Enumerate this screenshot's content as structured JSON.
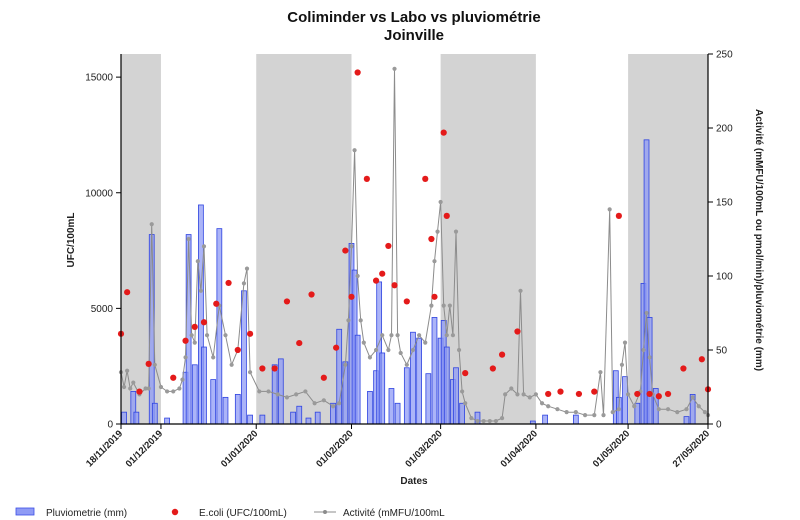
{
  "chart_data": {
    "type": "bar",
    "title": "Coliminder vs Labo vs pluviométrie",
    "subtitle": "Joinville",
    "xlabel": "Dates",
    "ylabel_left": "UFC/100mL",
    "ylabel_right": "Activité (mMFU/100mL ou pmol/min)/pluviométrie (mm)",
    "x_range": [
      "2019-11-18",
      "2020-05-27"
    ],
    "x_ticks": [
      "18/11/2019",
      "01/12/2019",
      "01/01/2020",
      "01/02/2020",
      "01/03/2020",
      "01/04/2020",
      "01/05/2020",
      "27/05/2020"
    ],
    "y_left_ticks": [
      0,
      5000,
      10000,
      15000
    ],
    "y_left_range": [
      0,
      16000
    ],
    "y_right_ticks": [
      0,
      50,
      100,
      150,
      200,
      250
    ],
    "y_right_range": [
      0,
      250
    ],
    "grid": false,
    "legend_position": "bottom",
    "shaded_periods": [
      [
        "2019-11-18",
        "2019-12-01"
      ],
      [
        "2020-01-01",
        "2020-02-01"
      ],
      [
        "2020-03-01",
        "2020-04-01"
      ],
      [
        "2020-05-01",
        "2020-05-27"
      ]
    ],
    "series": [
      {
        "name": "Pluviometrie (mm)",
        "kind": "bar",
        "axis": "right",
        "color": "#3b4fe6",
        "points": [
          [
            "2019-11-19",
            8
          ],
          [
            "2019-11-22",
            22
          ],
          [
            "2019-11-23",
            8
          ],
          [
            "2019-11-28",
            128
          ],
          [
            "2019-11-29",
            14
          ],
          [
            "2019-12-03",
            4
          ],
          [
            "2019-12-09",
            35
          ],
          [
            "2019-12-10",
            128
          ],
          [
            "2019-12-12",
            40
          ],
          [
            "2019-12-14",
            148
          ],
          [
            "2019-12-15",
            52
          ],
          [
            "2019-12-18",
            30
          ],
          [
            "2019-12-20",
            132
          ],
          [
            "2019-12-22",
            18
          ],
          [
            "2019-12-26",
            20
          ],
          [
            "2019-12-28",
            90
          ],
          [
            "2019-12-30",
            6
          ],
          [
            "2020-01-03",
            6
          ],
          [
            "2020-01-07",
            40
          ],
          [
            "2020-01-09",
            44
          ],
          [
            "2020-01-13",
            8
          ],
          [
            "2020-01-15",
            12
          ],
          [
            "2020-01-18",
            4
          ],
          [
            "2020-01-21",
            8
          ],
          [
            "2020-01-26",
            14
          ],
          [
            "2020-01-28",
            64
          ],
          [
            "2020-01-30",
            42
          ],
          [
            "2020-02-01",
            122
          ],
          [
            "2020-02-02",
            104
          ],
          [
            "2020-02-03",
            60
          ],
          [
            "2020-02-07",
            22
          ],
          [
            "2020-02-09",
            36
          ],
          [
            "2020-02-10",
            96
          ],
          [
            "2020-02-11",
            48
          ],
          [
            "2020-02-14",
            24
          ],
          [
            "2020-02-16",
            14
          ],
          [
            "2020-02-19",
            38
          ],
          [
            "2020-02-21",
            62
          ],
          [
            "2020-02-23",
            58
          ],
          [
            "2020-02-26",
            34
          ],
          [
            "2020-02-28",
            72
          ],
          [
            "2020-03-01",
            58
          ],
          [
            "2020-03-02",
            70
          ],
          [
            "2020-03-03",
            52
          ],
          [
            "2020-03-05",
            30
          ],
          [
            "2020-03-06",
            38
          ],
          [
            "2020-03-08",
            14
          ],
          [
            "2020-03-13",
            8
          ],
          [
            "2020-03-31",
            2
          ],
          [
            "2020-04-04",
            6
          ],
          [
            "2020-04-14",
            6
          ],
          [
            "2020-04-27",
            36
          ],
          [
            "2020-04-28",
            18
          ],
          [
            "2020-04-30",
            32
          ],
          [
            "2020-05-04",
            14
          ],
          [
            "2020-05-06",
            95
          ],
          [
            "2020-05-07",
            192
          ],
          [
            "2020-05-08",
            72
          ],
          [
            "2020-05-10",
            24
          ],
          [
            "2020-05-20",
            5
          ],
          [
            "2020-05-22",
            20
          ]
        ]
      },
      {
        "name": "E.coli (UFC/100mL)",
        "kind": "scatter",
        "axis": "left",
        "color": "#e41a1a",
        "points": [
          [
            "2019-11-18",
            3900
          ],
          [
            "2019-11-20",
            5700
          ],
          [
            "2019-11-24",
            1400
          ],
          [
            "2019-11-27",
            2600
          ],
          [
            "2019-12-05",
            2000
          ],
          [
            "2019-12-09",
            3600
          ],
          [
            "2019-12-12",
            4200
          ],
          [
            "2019-12-15",
            4400
          ],
          [
            "2019-12-19",
            5200
          ],
          [
            "2019-12-23",
            6100
          ],
          [
            "2019-12-26",
            3200
          ],
          [
            "2019-12-30",
            3900
          ],
          [
            "2020-01-03",
            2400
          ],
          [
            "2020-01-07",
            2400
          ],
          [
            "2020-01-11",
            5300
          ],
          [
            "2020-01-15",
            3500
          ],
          [
            "2020-01-19",
            5600
          ],
          [
            "2020-01-23",
            2000
          ],
          [
            "2020-01-27",
            3300
          ],
          [
            "2020-01-30",
            7500
          ],
          [
            "2020-02-01",
            5500
          ],
          [
            "2020-02-03",
            15200
          ],
          [
            "2020-02-06",
            10600
          ],
          [
            "2020-02-09",
            6200
          ],
          [
            "2020-02-11",
            6500
          ],
          [
            "2020-02-13",
            7700
          ],
          [
            "2020-02-15",
            6000
          ],
          [
            "2020-02-19",
            5300
          ],
          [
            "2020-02-25",
            10600
          ],
          [
            "2020-02-27",
            8000
          ],
          [
            "2020-02-28",
            5500
          ],
          [
            "2020-03-02",
            12600
          ],
          [
            "2020-03-03",
            9000
          ],
          [
            "2020-03-09",
            2200
          ],
          [
            "2020-03-18",
            2400
          ],
          [
            "2020-03-21",
            3000
          ],
          [
            "2020-03-26",
            4000
          ],
          [
            "2020-04-05",
            1300
          ],
          [
            "2020-04-09",
            1400
          ],
          [
            "2020-04-15",
            1300
          ],
          [
            "2020-04-20",
            1400
          ],
          [
            "2020-04-28",
            9000
          ],
          [
            "2020-05-04",
            1300
          ],
          [
            "2020-05-08",
            1300
          ],
          [
            "2020-05-11",
            1200
          ],
          [
            "2020-05-14",
            1300
          ],
          [
            "2020-05-19",
            2400
          ],
          [
            "2020-05-25",
            2800
          ],
          [
            "2020-05-27",
            1500
          ]
        ]
      },
      {
        "name": "Activité (mMFU/100mL",
        "kind": "line",
        "axis": "right",
        "color": "#8c8c8c",
        "points": [
          [
            "2019-11-18",
            35
          ],
          [
            "2019-11-19",
            25
          ],
          [
            "2019-11-20",
            36
          ],
          [
            "2019-11-21",
            24
          ],
          [
            "2019-11-22",
            28
          ],
          [
            "2019-11-24",
            20
          ],
          [
            "2019-11-26",
            24
          ],
          [
            "2019-11-27",
            24
          ],
          [
            "2019-11-28",
            135
          ],
          [
            "2019-11-29",
            40
          ],
          [
            "2019-12-01",
            25
          ],
          [
            "2019-12-03",
            22
          ],
          [
            "2019-12-05",
            22
          ],
          [
            "2019-12-07",
            24
          ],
          [
            "2019-12-08",
            30
          ],
          [
            "2019-12-09",
            45
          ],
          [
            "2019-12-10",
            125
          ],
          [
            "2019-12-11",
            60
          ],
          [
            "2019-12-12",
            55
          ],
          [
            "2019-12-13",
            110
          ],
          [
            "2019-12-14",
            90
          ],
          [
            "2019-12-15",
            120
          ],
          [
            "2019-12-16",
            60
          ],
          [
            "2019-12-18",
            45
          ],
          [
            "2019-12-20",
            80
          ],
          [
            "2019-12-22",
            60
          ],
          [
            "2019-12-24",
            40
          ],
          [
            "2019-12-26",
            50
          ],
          [
            "2019-12-28",
            95
          ],
          [
            "2019-12-29",
            105
          ],
          [
            "2019-12-30",
            35
          ],
          [
            "2020-01-02",
            22
          ],
          [
            "2020-01-05",
            22
          ],
          [
            "2020-01-08",
            20
          ],
          [
            "2020-01-11",
            18
          ],
          [
            "2020-01-14",
            20
          ],
          [
            "2020-01-17",
            22
          ],
          [
            "2020-01-20",
            14
          ],
          [
            "2020-01-23",
            16
          ],
          [
            "2020-01-26",
            12
          ],
          [
            "2020-01-28",
            14
          ],
          [
            "2020-01-30",
            40
          ],
          [
            "2020-01-31",
            70
          ],
          [
            "2020-02-01",
            120
          ],
          [
            "2020-02-02",
            185
          ],
          [
            "2020-02-03",
            100
          ],
          [
            "2020-02-04",
            70
          ],
          [
            "2020-02-05",
            55
          ],
          [
            "2020-02-07",
            45
          ],
          [
            "2020-02-09",
            50
          ],
          [
            "2020-02-11",
            60
          ],
          [
            "2020-02-13",
            50
          ],
          [
            "2020-02-14",
            60
          ],
          [
            "2020-02-15",
            240
          ],
          [
            "2020-02-16",
            60
          ],
          [
            "2020-02-17",
            48
          ],
          [
            "2020-02-19",
            40
          ],
          [
            "2020-02-21",
            50
          ],
          [
            "2020-02-23",
            60
          ],
          [
            "2020-02-25",
            55
          ],
          [
            "2020-02-27",
            80
          ],
          [
            "2020-02-28",
            110
          ],
          [
            "2020-02-29",
            130
          ],
          [
            "2020-03-01",
            150
          ],
          [
            "2020-03-02",
            80
          ],
          [
            "2020-03-03",
            60
          ],
          [
            "2020-03-04",
            80
          ],
          [
            "2020-03-05",
            60
          ],
          [
            "2020-03-06",
            130
          ],
          [
            "2020-03-07",
            50
          ],
          [
            "2020-03-08",
            22
          ],
          [
            "2020-03-09",
            14
          ],
          [
            "2020-03-11",
            4
          ],
          [
            "2020-03-13",
            2
          ],
          [
            "2020-03-15",
            2
          ],
          [
            "2020-03-17",
            2
          ],
          [
            "2020-03-19",
            2
          ],
          [
            "2020-03-21",
            4
          ],
          [
            "2020-03-22",
            20
          ],
          [
            "2020-03-24",
            24
          ],
          [
            "2020-03-26",
            20
          ],
          [
            "2020-03-27",
            90
          ],
          [
            "2020-03-28",
            20
          ],
          [
            "2020-03-30",
            18
          ],
          [
            "2020-04-01",
            20
          ],
          [
            "2020-04-03",
            14
          ],
          [
            "2020-04-05",
            12
          ],
          [
            "2020-04-08",
            10
          ],
          [
            "2020-04-11",
            8
          ],
          [
            "2020-04-14",
            8
          ],
          [
            "2020-04-17",
            6
          ],
          [
            "2020-04-20",
            6
          ],
          [
            "2020-04-22",
            35
          ],
          [
            "2020-04-23",
            6
          ],
          [
            "2020-04-25",
            145
          ],
          [
            "2020-04-26",
            8
          ],
          [
            "2020-04-28",
            10
          ],
          [
            "2020-04-29",
            40
          ],
          [
            "2020-04-30",
            55
          ],
          [
            "2020-05-01",
            20
          ],
          [
            "2020-05-03",
            12
          ],
          [
            "2020-05-05",
            22
          ],
          [
            "2020-05-06",
            50
          ],
          [
            "2020-05-07",
            75
          ],
          [
            "2020-05-08",
            45
          ],
          [
            "2020-05-09",
            20
          ],
          [
            "2020-05-11",
            10
          ],
          [
            "2020-05-14",
            10
          ],
          [
            "2020-05-17",
            8
          ],
          [
            "2020-05-20",
            10
          ],
          [
            "2020-05-22",
            18
          ],
          [
            "2020-05-24",
            12
          ],
          [
            "2020-05-26",
            8
          ],
          [
            "2020-05-27",
            6
          ]
        ]
      }
    ]
  }
}
